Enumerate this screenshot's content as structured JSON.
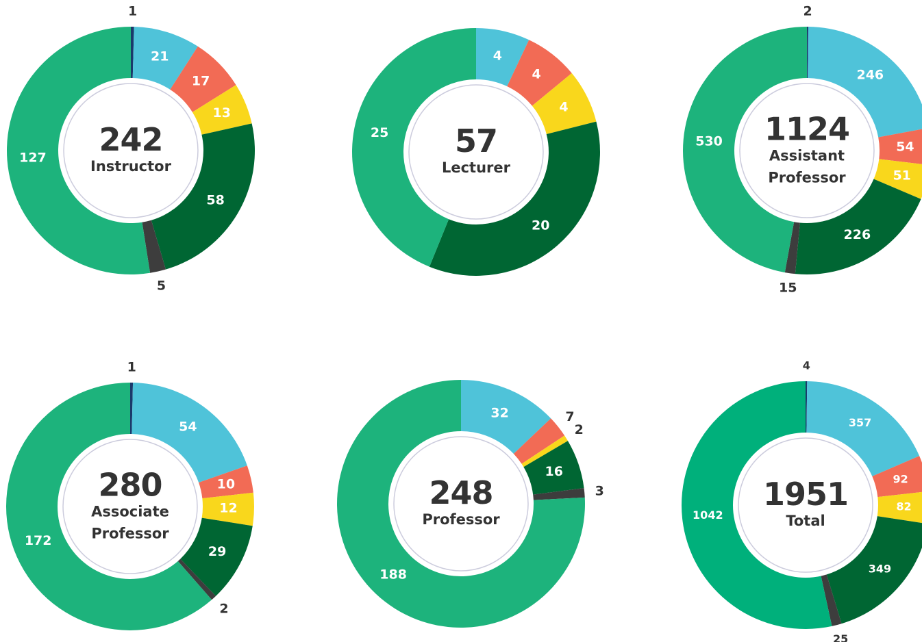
{
  "chart_data": [
    {
      "type": "donut",
      "title": "Instructor",
      "total": 242,
      "values": [
        1,
        21,
        17,
        13,
        58,
        5,
        127
      ],
      "colors": [
        "#1a3a6b",
        "#4fc3d9",
        "#f26b55",
        "#f9d71c",
        "#006633",
        "#3d3d3d",
        "#1db37c"
      ]
    },
    {
      "type": "donut",
      "title": "Lecturer",
      "total": 57,
      "values": [
        4,
        4,
        4,
        20,
        25
      ],
      "colors": [
        "#4fc3d9",
        "#f26b55",
        "#f9d71c",
        "#006633",
        "#1db37c"
      ]
    },
    {
      "type": "donut",
      "title": "Assistant Professor",
      "total": 1124,
      "values": [
        2,
        246,
        54,
        51,
        226,
        15,
        530
      ],
      "colors": [
        "#1a3a6b",
        "#4fc3d9",
        "#f26b55",
        "#f9d71c",
        "#006633",
        "#3d3d3d",
        "#1db37c"
      ]
    },
    {
      "type": "donut",
      "title": "Associate Professor",
      "total": 280,
      "values": [
        1,
        54,
        10,
        12,
        29,
        2,
        172
      ],
      "colors": [
        "#1a3a6b",
        "#4fc3d9",
        "#f26b55",
        "#f9d71c",
        "#006633",
        "#3d3d3d",
        "#1db37c"
      ]
    },
    {
      "type": "donut",
      "title": "Professor",
      "total": 248,
      "values": [
        32,
        7,
        2,
        16,
        3,
        188
      ],
      "colors": [
        "#4fc3d9",
        "#f26b55",
        "#f9d71c",
        "#006633",
        "#3d3d3d",
        "#1db37c"
      ]
    },
    {
      "type": "donut",
      "title": "Total",
      "total": 1951,
      "values": [
        4,
        357,
        92,
        82,
        349,
        25,
        1042
      ],
      "colors": [
        "#1a3a6b",
        "#4fc3d9",
        "#f26b55",
        "#f9d71c",
        "#006633",
        "#3d3d3d",
        "#00b07b"
      ]
    }
  ]
}
